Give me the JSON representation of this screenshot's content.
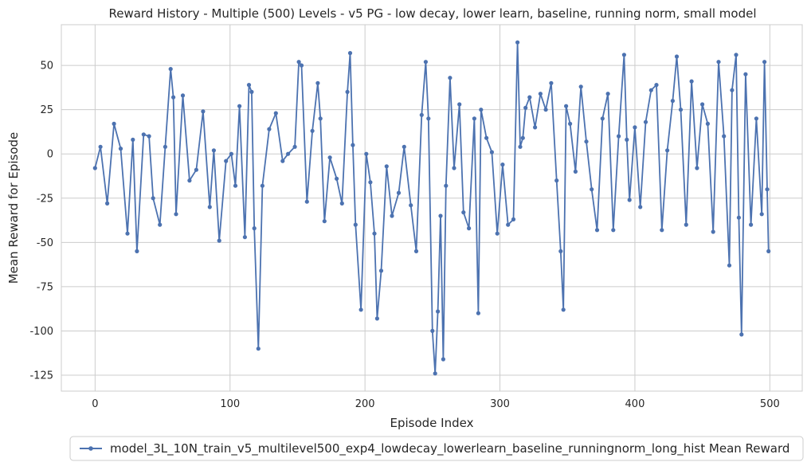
{
  "chart_data": {
    "type": "line",
    "title": "Reward History - Multiple (500) Levels - v5 PG - low decay, lower learn, baseline, running norm, small model",
    "xlabel": "Episode Index",
    "ylabel": "Mean Reward for Episode",
    "xlim": [
      -25,
      524
    ],
    "ylim": [
      -134,
      73
    ],
    "xticks": [
      0,
      100,
      200,
      300,
      400,
      500
    ],
    "yticks": [
      -125,
      -100,
      -75,
      -50,
      -25,
      0,
      25,
      50
    ],
    "grid": true,
    "legend_position": "bottom-center",
    "colors": {
      "series": "#4c72b0",
      "grid": "#cccccc",
      "text": "#262626",
      "spine": "#cccccc"
    },
    "series": [
      {
        "name": "model_3L_10N_train_v5_multilevel500_exp4_lowdecay_lowerlearn_baseline_runningnorm_long_hist Mean Reward",
        "x": [
          0,
          4,
          9,
          14,
          19,
          24,
          28,
          31,
          36,
          40,
          43,
          48,
          52,
          56,
          58,
          60,
          65,
          70,
          75,
          80,
          85,
          88,
          92,
          97,
          101,
          104,
          107,
          111,
          114,
          116,
          118,
          121,
          124,
          129,
          134,
          139,
          143,
          148,
          151,
          153,
          157,
          161,
          165,
          167,
          170,
          174,
          179,
          183,
          187,
          189,
          191,
          193,
          197,
          201,
          204,
          207,
          209,
          212,
          216,
          220,
          225,
          229,
          234,
          238,
          242,
          245,
          247,
          250,
          252,
          254,
          256,
          258,
          260,
          263,
          266,
          270,
          273,
          277,
          281,
          284,
          286,
          290,
          294,
          298,
          302,
          306,
          310,
          313,
          315,
          317,
          319,
          322,
          326,
          330,
          334,
          338,
          342,
          345,
          347,
          349,
          352,
          356,
          360,
          364,
          368,
          372,
          376,
          380,
          384,
          388,
          392,
          394,
          396,
          400,
          404,
          408,
          412,
          416,
          420,
          424,
          428,
          431,
          434,
          438,
          442,
          446,
          450,
          454,
          458,
          462,
          466,
          470,
          472,
          475,
          477,
          479,
          482,
          486,
          490,
          494,
          496,
          498,
          499
        ],
        "values": [
          -8,
          4,
          -28,
          17,
          3,
          -45,
          8,
          -55,
          11,
          10,
          -25,
          -40,
          4,
          48,
          32,
          -34,
          33,
          -15,
          -9,
          24,
          -30,
          2,
          -49,
          -4,
          0,
          -18,
          27,
          -47,
          39,
          35,
          -42,
          -110,
          -18,
          14,
          23,
          -4,
          0,
          4,
          52,
          50,
          -27,
          13,
          40,
          20,
          -38,
          -2,
          -14,
          -28,
          35,
          57,
          5,
          -40,
          -88,
          0,
          -16,
          -45,
          -93,
          -66,
          -7,
          -35,
          -22,
          4,
          -29,
          -55,
          22,
          52,
          20,
          -100,
          -124,
          -89,
          -35,
          -116,
          -18,
          43,
          -8,
          28,
          -33,
          -42,
          20,
          -90,
          25,
          9,
          1,
          -45,
          -6,
          -40,
          -37,
          63,
          4,
          9,
          26,
          32,
          15,
          34,
          25,
          40,
          -15,
          -55,
          -88,
          27,
          17,
          -10,
          38,
          7,
          -20,
          -43,
          20,
          34,
          -43,
          10,
          56,
          8,
          -26,
          15,
          -30,
          18,
          36,
          39,
          -43,
          2,
          30,
          55,
          25,
          -40,
          41,
          -8,
          28,
          17,
          -44,
          52,
          10,
          -63,
          36,
          56,
          -36,
          -102,
          45,
          -40,
          20,
          -34,
          52,
          -20,
          -55
        ]
      }
    ]
  }
}
